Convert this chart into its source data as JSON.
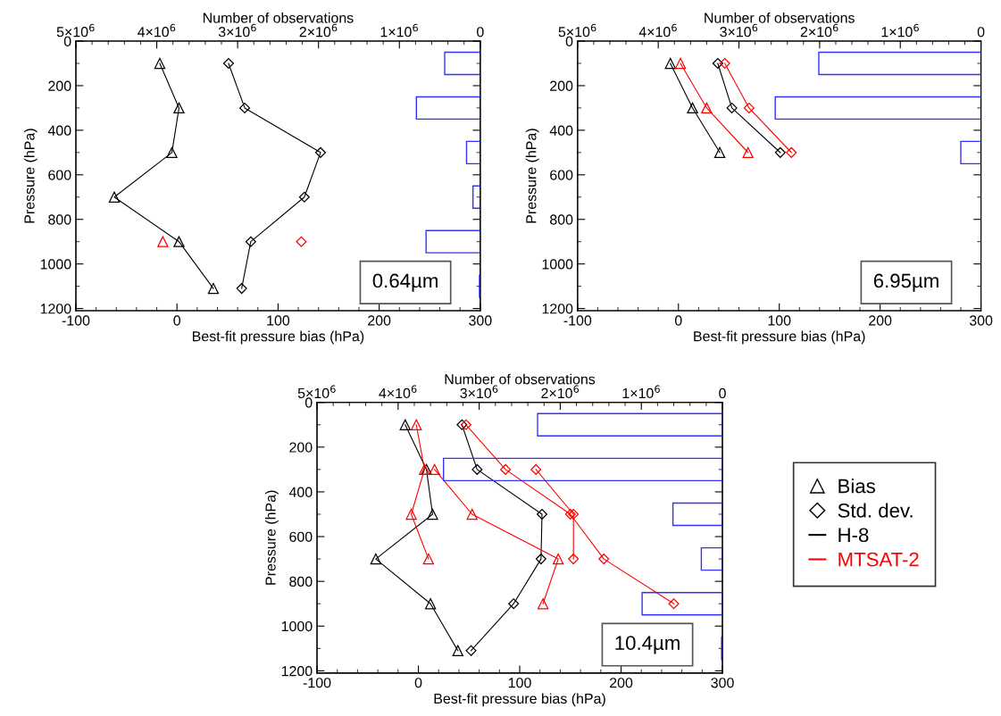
{
  "chart_data": [
    {
      "type": "line",
      "orientation": "horizontal",
      "xlabel": "Best-fit pressure bias (hPa)",
      "ylabel": "Pressure (hPa)",
      "x2label": "Number of observations",
      "xlim": [
        -100,
        300
      ],
      "xticks": [
        -100,
        0,
        100,
        200,
        300
      ],
      "ylim": [
        1210,
        0
      ],
      "yticks": [
        0,
        200,
        400,
        600,
        800,
        1000,
        1200
      ],
      "x2lim": [
        5000000,
        0
      ],
      "x2ticks": [
        {
          "value": 5000000,
          "label": "5×10$^{6}$"
        },
        {
          "value": 4000000,
          "label": "4×10$^{6}$"
        },
        {
          "value": 3000000,
          "label": "3×10$^{6}$"
        },
        {
          "value": 2000000,
          "label": "2×10$^{6}$"
        },
        {
          "value": 1000000,
          "label": "1×10$^{6}$"
        },
        0
      ],
      "line_style": "solid",
      "grid": false,
      "annotations": [
        "0.64µm"
      ],
      "series": [
        {
          "type": "bar",
          "axis": "x2",
          "color": "#3333ff",
          "x": [
            100,
            300,
            500,
            700,
            900,
            1100
          ],
          "values": [
            440000,
            790000,
            170000,
            90000,
            670000,
            10000
          ]
        },
        {
          "marker": "triangle",
          "color": "#000000",
          "x": [
            100,
            300,
            500,
            700,
            900,
            1110
          ],
          "values": [
            -17,
            2,
            -5,
            -62,
            2,
            36
          ]
        },
        {
          "marker": "diamond",
          "color": "#000000",
          "x": [
            100,
            300,
            500,
            700,
            900,
            1110
          ],
          "values": [
            51,
            67,
            142,
            126,
            73,
            64
          ]
        },
        {
          "marker": "triangle",
          "color": "#ff0000",
          "x": [
            900
          ],
          "values": [
            -14
          ]
        },
        {
          "marker": "diamond",
          "color": "#ff0000",
          "x": [
            900
          ],
          "values": [
            123
          ]
        }
      ]
    },
    {
      "type": "line",
      "orientation": "horizontal",
      "xlabel": "Best-fit pressure bias (hPa)",
      "ylabel": "Pressure (hPa)",
      "x2label": "Number of observations",
      "xlim": [
        -100,
        300
      ],
      "xticks": [
        -100,
        0,
        100,
        200,
        300
      ],
      "ylim": [
        1210,
        0
      ],
      "yticks": [
        0,
        200,
        400,
        600,
        800,
        1000,
        1200
      ],
      "x2lim": [
        5000000,
        0
      ],
      "x2ticks": [
        {
          "value": 5000000,
          "label": "5×10$^{6}$"
        },
        {
          "value": 4000000,
          "label": "4×10$^{6}$"
        },
        {
          "value": 3000000,
          "label": "3×10$^{6}$"
        },
        {
          "value": 2000000,
          "label": "2×10$^{6}$"
        },
        {
          "value": 1000000,
          "label": "1×10$^{6}$"
        },
        0
      ],
      "line_style": "solid",
      "grid": false,
      "annotations": [
        "6.95µm"
      ],
      "series": [
        {
          "type": "bar",
          "axis": "x2",
          "color": "#3333ff",
          "x": [
            100,
            300,
            500
          ],
          "values": [
            2010000,
            2550000,
            250000
          ]
        },
        {
          "marker": "triangle",
          "color": "#000000",
          "x": [
            100,
            300,
            500
          ],
          "values": [
            -8,
            14,
            41
          ]
        },
        {
          "marker": "triangle",
          "color": "#ff0000",
          "x": [
            100,
            300,
            500
          ],
          "values": [
            2,
            28,
            69
          ]
        },
        {
          "marker": "diamond",
          "color": "#000000",
          "x": [
            100,
            300,
            500
          ],
          "values": [
            39,
            53,
            101
          ]
        },
        {
          "marker": "diamond",
          "color": "#ff0000",
          "x": [
            100,
            300,
            500
          ],
          "values": [
            46,
            70,
            112
          ]
        }
      ]
    },
    {
      "type": "line",
      "orientation": "horizontal",
      "xlabel": "Best-fit pressure bias (hPa)",
      "ylabel": "Pressure (hPa)",
      "x2label": "Number of observations",
      "xlim": [
        -100,
        300
      ],
      "xticks": [
        -100,
        0,
        100,
        200,
        300
      ],
      "ylim": [
        1210,
        0
      ],
      "yticks": [
        0,
        200,
        400,
        600,
        800,
        1000,
        1200
      ],
      "x2lim": [
        5000000,
        0
      ],
      "x2ticks": [
        {
          "value": 5000000,
          "label": "5×10$^{6}$"
        },
        {
          "value": 4000000,
          "label": "4×10$^{6}$"
        },
        {
          "value": 3000000,
          "label": "3×10$^{6}$"
        },
        {
          "value": 2000000,
          "label": "2×10$^{6}$"
        },
        {
          "value": 1000000,
          "label": "1×10$^{6}$"
        },
        0
      ],
      "line_style": "solid",
      "grid": false,
      "annotations": [
        "10.4µm"
      ],
      "series": [
        {
          "type": "bar",
          "axis": "x2",
          "color": "#3333ff",
          "x": [
            100,
            300,
            500,
            700,
            900,
            1100
          ],
          "values": [
            2280000,
            3440000,
            610000,
            260000,
            990000,
            10000
          ]
        },
        {
          "marker": "triangle",
          "color": "#000000",
          "x": [
            100,
            300,
            500,
            700,
            900,
            1110
          ],
          "values": [
            -13,
            8,
            14,
            -42,
            12,
            39
          ]
        },
        {
          "marker": "diamond",
          "color": "#000000",
          "x": [
            100,
            300,
            500,
            700,
            900,
            1110
          ],
          "values": [
            43,
            58,
            122,
            121,
            94,
            52
          ]
        },
        {
          "marker": "triangle",
          "color": "#ff0000",
          "x": [
            100,
            300,
            500,
            700
          ],
          "values": [
            -2,
            6,
            -7,
            10
          ]
        },
        {
          "marker": "triangle",
          "color": "#ff0000",
          "x": [
            300,
            500,
            700,
            900
          ],
          "values": [
            16,
            53,
            138,
            123
          ]
        },
        {
          "marker": "diamond",
          "color": "#ff0000",
          "x": [
            100,
            300,
            500,
            700,
            900
          ],
          "values": [
            47,
            86,
            150,
            183,
            252
          ]
        },
        {
          "marker": "diamond",
          "color": "#ff0000",
          "x": [
            300,
            500,
            700
          ],
          "values": [
            116,
            153,
            153
          ]
        }
      ]
    },
    {
      "type": "other",
      "legend": "right",
      "series": [
        {
          "type": "scatter",
          "name": "Bias",
          "marker": "triangle",
          "color": "#000000"
        },
        {
          "type": "scatter",
          "name": "Std. dev.",
          "marker": "diamond",
          "color": "#000000"
        },
        {
          "type": "line",
          "name": "H-8",
          "color": "#000000"
        },
        {
          "type": "line",
          "name": "MTSAT-2",
          "color": "#ff0000"
        }
      ]
    }
  ]
}
